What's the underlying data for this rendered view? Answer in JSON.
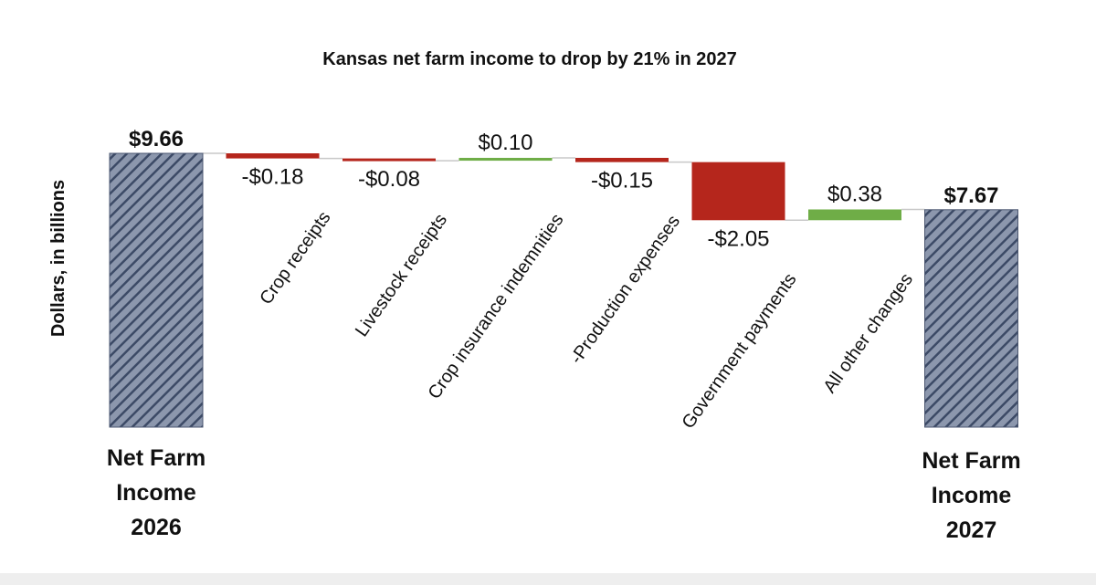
{
  "chart_data": {
    "type": "waterfall",
    "title": "Kansas net farm income to drop by 21% in 2027",
    "ylabel": "Dollars, in billions",
    "colors": {
      "total": "#8c97ad",
      "total_hatch": "#3c4a66",
      "decrease": "#b5261c",
      "increase": "#6fad47"
    },
    "items": [
      {
        "label_lines": [
          "Net Farm",
          "Income",
          "2026"
        ],
        "value": 9.66,
        "display": "$9.66",
        "kind": "total"
      },
      {
        "label": "Crop receipts",
        "value": -0.18,
        "display": "-$0.18",
        "kind": "decrease"
      },
      {
        "label": "Livestock receipts",
        "value": -0.08,
        "display": "-$0.08",
        "kind": "decrease"
      },
      {
        "label": "Crop insurance indemnities",
        "value": 0.1,
        "display": "$0.10",
        "kind": "increase"
      },
      {
        "label": "-Production expenses",
        "value": -0.15,
        "display": "-$0.15",
        "kind": "decrease"
      },
      {
        "label": "Government payments",
        "value": -2.05,
        "display": "-$2.05",
        "kind": "decrease"
      },
      {
        "label": "All other changes",
        "value": 0.38,
        "display": "$0.38",
        "kind": "increase"
      },
      {
        "label_lines": [
          "Net Farm",
          "Income",
          "2027"
        ],
        "value": 7.67,
        "display": "$7.67",
        "kind": "total"
      }
    ]
  }
}
